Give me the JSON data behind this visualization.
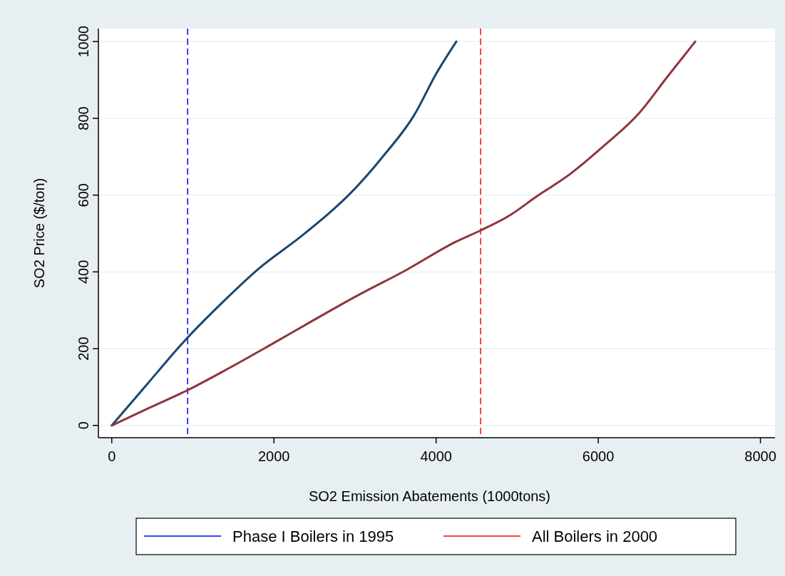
{
  "chart_data": {
    "type": "line",
    "xlabel": "SO2 Emission Abatements (1000tons)",
    "ylabel": "SO2 Price ($/ton)",
    "xlim": [
      -165,
      8180
    ],
    "xticks": [
      0,
      2000,
      4000,
      6000,
      8000
    ],
    "ylim": [
      -32,
      1034
    ],
    "yticks": [
      0,
      200,
      400,
      600,
      800,
      1000
    ],
    "grid": "y",
    "legend": "bottom",
    "line_style": "solid",
    "series": [
      {
        "color": "#1a476f",
        "x": [
          0,
          434,
          936,
          1377,
          1815,
          2320,
          2724,
          2926,
          3330,
          3734,
          4003,
          4249
        ],
        "values": [
          0,
          107,
          229,
          323,
          409,
          490,
          561,
          601,
          697,
          810,
          917,
          1000
        ]
      },
      {
        "color": "#90353b",
        "x": [
          0,
          434,
          936,
          1444,
          1983,
          2455,
          2993,
          3633,
          4239,
          4549,
          4906,
          5243,
          5647,
          6051,
          6489,
          6859,
          7196
        ],
        "values": [
          0,
          43,
          92,
          149,
          213,
          270,
          334,
          405,
          478,
          508,
          547,
          597,
          654,
          725,
          810,
          910,
          1000
        ]
      }
    ],
    "ref_lines": [
      {
        "axis": "x",
        "value": 936,
        "label": "Phase I Boilers in 1995",
        "color": "#0000ff",
        "line_style": "dashed"
      },
      {
        "axis": "x",
        "value": 4549,
        "label": "All Boilers in 2000",
        "color": "#ff0000",
        "line_style": "dashed"
      }
    ]
  }
}
